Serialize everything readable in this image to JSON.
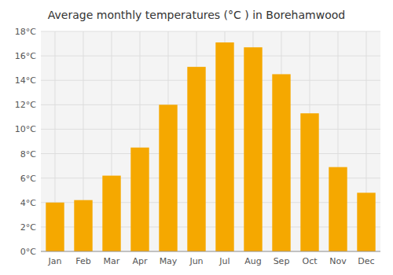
{
  "chart_data": {
    "type": "bar",
    "title": "Average monthly temperatures (°C ) in Borehamwood",
    "categories": [
      "Jan",
      "Feb",
      "Mar",
      "Apr",
      "May",
      "Jun",
      "Jul",
      "Aug",
      "Sep",
      "Oct",
      "Nov",
      "Dec"
    ],
    "values": [
      4.0,
      4.2,
      6.2,
      8.5,
      12.0,
      15.1,
      17.1,
      16.7,
      14.5,
      11.3,
      6.9,
      4.8
    ],
    "color": "#F5A800",
    "ylim": [
      0,
      18
    ],
    "yticks": [
      {
        "value": 0,
        "label": "0°C"
      },
      {
        "value": 2,
        "label": "2°C"
      },
      {
        "value": 4,
        "label": "4°C"
      },
      {
        "value": 6,
        "label": "6°C"
      },
      {
        "value": 8,
        "label": "8°C"
      },
      {
        "value": 10,
        "label": "10°C"
      },
      {
        "value": 12,
        "label": "12°C"
      },
      {
        "value": 14,
        "label": "14°C"
      },
      {
        "value": 16,
        "label": "16°C"
      },
      {
        "value": 18,
        "label": "18°C"
      }
    ],
    "grid": true
  }
}
